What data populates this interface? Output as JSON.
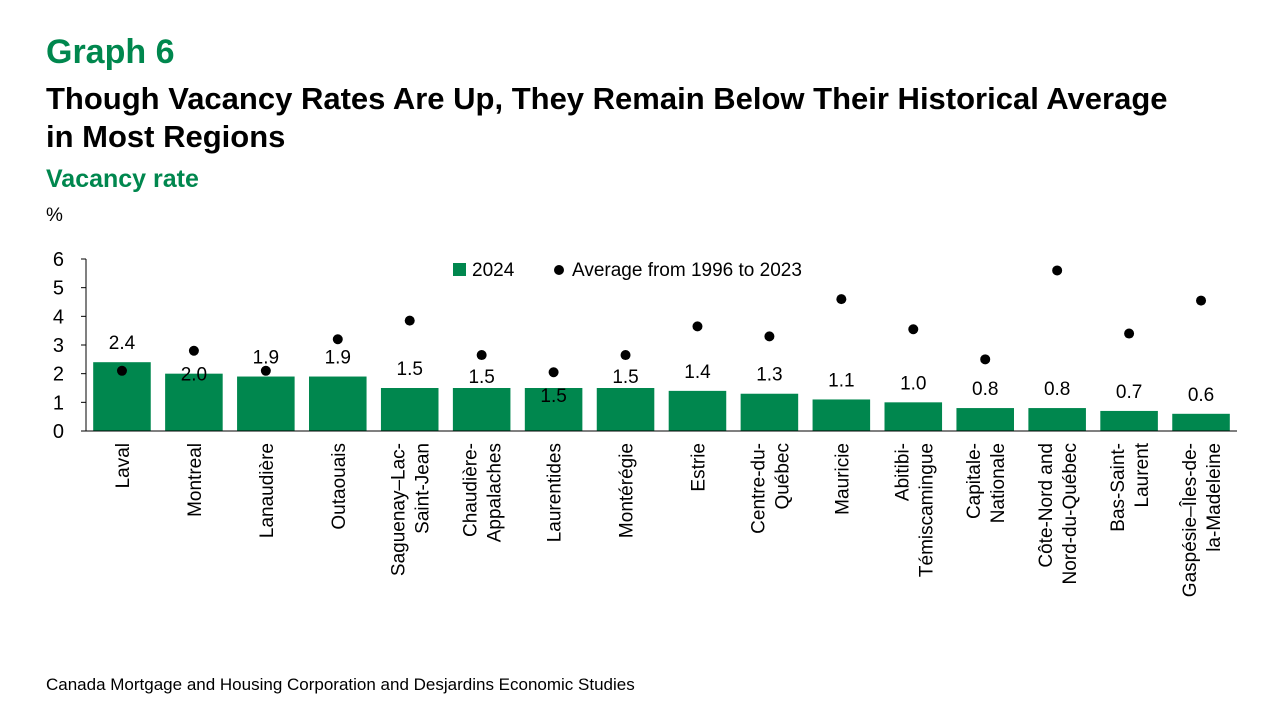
{
  "header": {
    "graph_number": "Graph 6",
    "title": "Though Vacancy Rates Are Up, They Remain Below Their Historical Average in Most Regions",
    "subtitle": "Vacancy rate"
  },
  "footer": {
    "source": "Canada Mortgage and Housing Corporation and Desjardins Economic Studies"
  },
  "colors": {
    "bar": "#00874e",
    "dot": "#000000",
    "accent": "#00874e"
  },
  "chart_data": {
    "type": "bar",
    "ylabel": "%",
    "ylim": [
      0,
      6
    ],
    "yticks": [
      0,
      1,
      2,
      3,
      4,
      5,
      6
    ],
    "legend_placement": "top-center",
    "grid": false,
    "categories": [
      [
        "Laval"
      ],
      [
        "Montreal"
      ],
      [
        "Lanaudière"
      ],
      [
        "Outaouais"
      ],
      [
        "Saguenay–Lac-",
        "Saint-Jean"
      ],
      [
        "Chaudière-",
        "Appalaches"
      ],
      [
        "Laurentides"
      ],
      [
        "Montérégie"
      ],
      [
        "Estrie"
      ],
      [
        "Centre-du-",
        "Québec"
      ],
      [
        "Mauricie"
      ],
      [
        "Abitibi-",
        "Témiscamingue"
      ],
      [
        "Capitale-",
        "Nationale"
      ],
      [
        "Côte-Nord and",
        "Nord-du-Québec"
      ],
      [
        "Bas-Saint-",
        "Laurent"
      ],
      [
        "Gaspésie–Îles-de-",
        "la-Madeleine"
      ]
    ],
    "series": [
      {
        "name": "2024",
        "kind": "bar",
        "values": [
          2.4,
          2.0,
          1.9,
          1.9,
          1.5,
          1.5,
          1.5,
          1.5,
          1.4,
          1.3,
          1.1,
          1.0,
          0.8,
          0.8,
          0.7,
          0.6
        ],
        "labels": [
          "2.4",
          "2.0",
          "1.9",
          "1.9",
          "1.5",
          "1.5",
          "1.5",
          "1.5",
          "1.4",
          "1.3",
          "1.1",
          "1.0",
          "0.8",
          "0.8",
          "0.7",
          "0.6"
        ]
      },
      {
        "name": "Average from 1996 to 2023",
        "kind": "dot",
        "values": [
          2.1,
          2.8,
          2.1,
          3.2,
          3.85,
          2.65,
          2.05,
          2.65,
          3.65,
          3.3,
          4.6,
          3.55,
          2.5,
          5.6,
          3.4,
          4.55
        ]
      }
    ]
  }
}
